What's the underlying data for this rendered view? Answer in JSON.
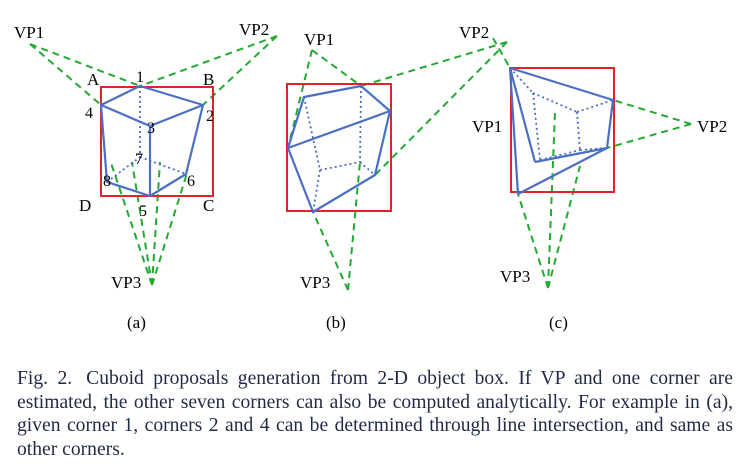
{
  "figure": {
    "panel_a": {
      "subcaption": "(a)",
      "vp_labels": [
        "VP1",
        "VP2",
        "VP3"
      ],
      "corner_labels": [
        "1",
        "2",
        "3",
        "4",
        "5",
        "6",
        "7",
        "8"
      ],
      "box_labels": [
        "A",
        "B",
        "C",
        "D"
      ]
    },
    "panel_b": {
      "subcaption": "(b)",
      "vp_labels": [
        "VP1",
        "VP2",
        "VP3"
      ]
    },
    "panel_c": {
      "subcaption": "(c)",
      "vp_labels": [
        "VP1",
        "VP2",
        "VP3"
      ]
    },
    "colors": {
      "vanishing_lines": "#22aa33",
      "cuboid_edges": "#4a6fc4",
      "object_box": "#e0242a"
    }
  },
  "caption": {
    "label": "Fig. 2.",
    "text": "Cuboid proposals generation from 2-D object box. If VP and one corner are estimated, the other seven corners can also be computed analytically. For example in (a), given corner 1, corners 2 and 4 can be determined through line intersection, and same as other corners."
  }
}
